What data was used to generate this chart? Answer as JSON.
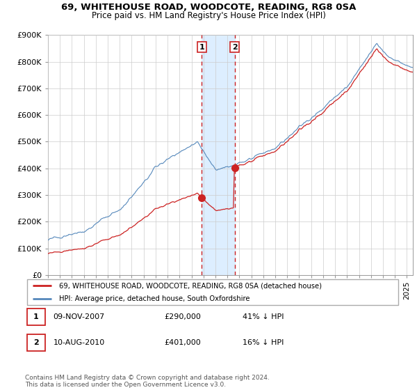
{
  "title": "69, WHITEHOUSE ROAD, WOODCOTE, READING, RG8 0SA",
  "subtitle": "Price paid vs. HM Land Registry's House Price Index (HPI)",
  "ylim": [
    0,
    900000
  ],
  "yticks": [
    0,
    100000,
    200000,
    300000,
    400000,
    500000,
    600000,
    700000,
    800000,
    900000
  ],
  "ytick_labels": [
    "£0",
    "£100K",
    "£200K",
    "£300K",
    "£400K",
    "£500K",
    "£600K",
    "£700K",
    "£800K",
    "£900K"
  ],
  "sale1_date": 2007.86,
  "sale1_price": 290000,
  "sale2_date": 2010.61,
  "sale2_price": 401000,
  "legend_line1": "69, WHITEHOUSE ROAD, WOODCOTE, READING, RG8 0SA (detached house)",
  "legend_line2": "HPI: Average price, detached house, South Oxfordshire",
  "footnote": "Contains HM Land Registry data © Crown copyright and database right 2024.\nThis data is licensed under the Open Government Licence v3.0.",
  "hpi_color": "#5588bb",
  "sale_color": "#cc2222",
  "shade_color": "#ddeeff",
  "grid_color": "#cccccc"
}
